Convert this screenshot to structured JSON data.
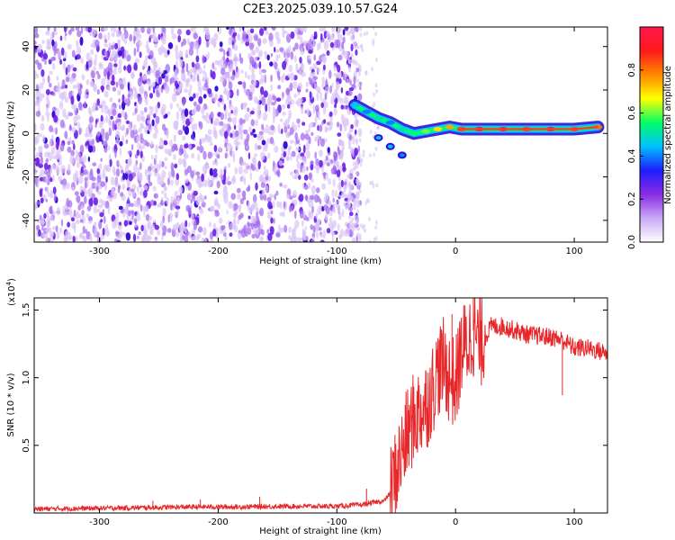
{
  "title": "C2E3.2025.039.10.57.G24",
  "colors": {
    "snr_line": "#e8272a",
    "sat_low": "#7a20e0",
    "dense": "#3b0fd8"
  },
  "chart_data": [
    {
      "type": "heatmap",
      "xlabel": "Height of straight line (km)",
      "ylabel": "Frequency (Hz)",
      "xlim": [
        -355,
        128
      ],
      "ylim": [
        -50,
        49
      ],
      "x_ticks": [
        -300,
        -200,
        -100,
        0,
        100
      ],
      "x_tick_labels": [
        "-300",
        "-200",
        "-100",
        "0",
        "100"
      ],
      "y_ticks": [
        -40,
        -20,
        0,
        20,
        40
      ],
      "y_tick_labels": [
        "-40",
        "-20",
        "0",
        "20",
        "40"
      ],
      "colorbar": {
        "label": "Normalized spectral amplitude",
        "range": [
          0,
          1
        ],
        "ticks": [
          0.0,
          0.2,
          0.4,
          0.6,
          0.8
        ],
        "tick_labels": [
          "0.0",
          "0.2",
          "0.4",
          "0.6",
          "0.8"
        ],
        "colormap": [
          "#ffffff",
          "#c9a8f5",
          "#8a2be2",
          "#1e1eff",
          "#00bfff",
          "#00ff66",
          "#ffff00",
          "#ff8800",
          "#ff1a1a",
          "#ff1a4d"
        ]
      },
      "noise_region_x": [
        -355,
        -80
      ],
      "signal_track": [
        {
          "x": -85,
          "y": 13,
          "amp": 0.45
        },
        {
          "x": -75,
          "y": 10,
          "amp": 0.4
        },
        {
          "x": -65,
          "y": 7,
          "amp": 0.5
        },
        {
          "x": -55,
          "y": 5,
          "amp": 0.4
        },
        {
          "x": -45,
          "y": 2,
          "amp": 0.5
        },
        {
          "x": -35,
          "y": 0,
          "amp": 0.55
        },
        {
          "x": -25,
          "y": 1,
          "amp": 0.6
        },
        {
          "x": -15,
          "y": 2,
          "amp": 0.7
        },
        {
          "x": -5,
          "y": 3,
          "amp": 0.75
        },
        {
          "x": 5,
          "y": 2,
          "amp": 0.85
        },
        {
          "x": 20,
          "y": 2,
          "amp": 0.9
        },
        {
          "x": 40,
          "y": 2,
          "amp": 0.9
        },
        {
          "x": 60,
          "y": 2,
          "amp": 0.85
        },
        {
          "x": 80,
          "y": 2,
          "amp": 0.9
        },
        {
          "x": 100,
          "y": 2,
          "amp": 0.85
        },
        {
          "x": 120,
          "y": 3,
          "amp": 0.8
        }
      ],
      "secondary_track": [
        {
          "x": -65,
          "y": -2,
          "amp": 0.45
        },
        {
          "x": -55,
          "y": -6,
          "amp": 0.45
        },
        {
          "x": -45,
          "y": -10,
          "amp": 0.4
        }
      ]
    },
    {
      "type": "line",
      "xlabel": "Height of straight line (km)",
      "ylabel": "SNR (10 * v/v)",
      "y_multiplier": "(x10",
      "y_multiplier_exp": "4",
      "y_multiplier_close": ")",
      "xlim": [
        -355,
        128
      ],
      "ylim": [
        0,
        15900
      ],
      "x_ticks": [
        -300,
        -200,
        -100,
        0,
        100
      ],
      "x_tick_labels": [
        "-300",
        "-200",
        "-100",
        "0",
        "100"
      ],
      "y_ticks": [
        5000,
        10000,
        15000
      ],
      "y_tick_labels": [
        "0.5",
        "1.0",
        "1.5"
      ],
      "series": [
        {
          "x": [
            -355,
            -300,
            -260,
            -220,
            -180,
            -140,
            -100,
            -80,
            -60,
            -55,
            -50,
            -45,
            -40,
            -35,
            -30,
            -25,
            -20,
            -15,
            -10,
            -5,
            0,
            5,
            10,
            15,
            20,
            25,
            30,
            40,
            50,
            60,
            70,
            80,
            90,
            100,
            110,
            120,
            128
          ],
          "y": [
            300,
            350,
            400,
            450,
            450,
            500,
            500,
            600,
            900,
            1500,
            3000,
            4500,
            6000,
            7000,
            7500,
            8000,
            9000,
            10500,
            11000,
            10000,
            9500,
            12000,
            12500,
            13500,
            12500,
            13000,
            13800,
            13800,
            13500,
            13200,
            13100,
            13000,
            12800,
            12200,
            12200,
            12000,
            11800
          ]
        }
      ],
      "spikes": [
        {
          "x": -255,
          "y": 900
        },
        {
          "x": -215,
          "y": 1000
        },
        {
          "x": -165,
          "y": 1200
        },
        {
          "x": -75,
          "y": 1800
        },
        {
          "x": 15,
          "y": 15900
        },
        {
          "x": -3,
          "y": 14700
        },
        {
          "x": 90,
          "y": 8700
        }
      ]
    }
  ]
}
